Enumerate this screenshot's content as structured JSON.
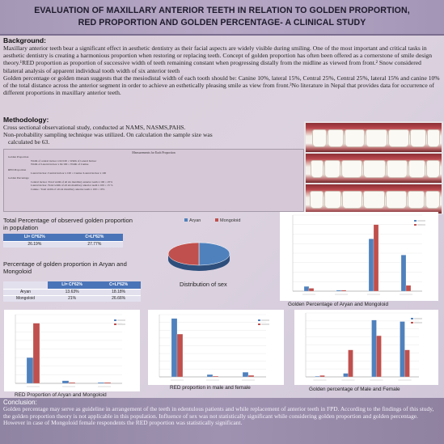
{
  "header": {
    "title_line1": "EVALUATION OF MAXILLARY ANTERIOR TEETH IN RELATION TO GOLDEN PROPORTION,",
    "title_line2": "RED PROPORTION AND GOLDEN PERCENTAGE- A CLINICAL STUDY"
  },
  "background": {
    "heading": "Background:",
    "p1": "Maxillary anterior teeth bear a significant effect in aesthetic dentistry as their facial aspects are widely visible during smiling. One of the most important and critical tasks in aesthetic dentistry is creating a harmonious proportion when restoring or replacing teeth. Concept of golden proportion has often been offered as a cornerstone of smile design theory.¹RED proportion as proportion of successive width of teeth remaining constant when progressing distally from the midline as viewed from front.² Snow considered bilateral analysis of apparent individual tooth width of six anterior teeth",
    "p2": "Golden percentage or golden mean suggests that the mesiodistal width of each tooth should be: Canine 10%, lateral 15%, Central 25%, Central 25%, lateral 15% and canine 10% of the total distance across the anterior segment in order to achieve an esthetically pleasing smile as view from front.³No literature in Nepal that provides data for occurrence of different proportions in maxillary anterior teeth."
  },
  "methodology": {
    "heading": "Methodology:",
    "line1": "Cross sectional observational study, conducted at NAMS, NASMS,PAHS.",
    "line2": "Non-probability sampling technique was utilized. On calculation the sample size was",
    "line3": "calculated be 63."
  },
  "measurements": {
    "title": "Measurements for Each Proportion",
    "gp_head": "Golden Proportion",
    "gp1": "Width of central incisor x 62/100 = Width of Lateral Incisor",
    "gp2": "Width of Lateral incisor x 62/100 = Width of Canine",
    "red_head": "RED Proportion",
    "red1": "Lateral incisor /Central incisor x 100 = Canine /Lateral incisor x 100",
    "gpc_head": "Golden Percentage",
    "gpc1": "Central incisor /Total width of all six maxillary anterior teeth x 100 = 25%",
    "gpc2": "Lateral incisor /Total width of all six maxillary anterior teeth x 100 = 15 %",
    "gpc3": "Canine / Total width of all six maxillary anterior teeth x 100 = 10%"
  },
  "total_table": {
    "heading": "Total Percentage of observed golden proportion in population",
    "col1": "LI= CI*62%",
    "col2": "C=LI*62%",
    "val1": "26.19%",
    "val2": "27.77%"
  },
  "group_table": {
    "heading": "Percentage of golden proportion in Aryan and Mongoloid",
    "col1": "LI= CI*62%",
    "col2": "C=LI*62%",
    "rows": [
      {
        "label": "Aryan",
        "v1": "13.63%",
        "v2": "18.18%"
      },
      {
        "label": "Mongoloid",
        "v1": "21%",
        "v2": "26.66%"
      }
    ]
  },
  "captions": {
    "pie": "Distribution of sex",
    "golden_pct_group": "Golden Percentage of Aryan and Mongoloid",
    "red_group": "RED Proportion of Aryan and Mongoloid",
    "red_sex": "RED proportion in male and female",
    "golden_pct_sex": "Golden percentage  of Male and Female"
  },
  "colors": {
    "blue": "#4f81bd",
    "red": "#c0504d",
    "header_bg": "#a99bbb",
    "conclusion_bg": "#978aa9"
  },
  "chart_data": [
    {
      "type": "pie",
      "series": [
        {
          "name": "Aryan",
          "value": 50
        },
        {
          "name": "Mongoloid",
          "value": 50
        }
      ],
      "legend": [
        "Aryan",
        "Mongoloid"
      ]
    },
    {
      "type": "bar",
      "categories": [
        "c1",
        "c2",
        "c3",
        "c4"
      ],
      "series": [
        {
          "name": "",
          "values": [
            5,
            1,
            55,
            38
          ]
        },
        {
          "name": "",
          "values": [
            3,
            1,
            70,
            6
          ]
        }
      ],
      "ylim": [
        0,
        80
      ]
    },
    {
      "type": "bar",
      "categories": [
        "c1",
        "c2",
        "c3"
      ],
      "series": [
        {
          "name": "",
          "values": [
            30,
            3,
            1
          ]
        },
        {
          "name": "",
          "values": [
            70,
            1,
            1
          ]
        }
      ],
      "ylim": [
        0,
        80
      ]
    },
    {
      "type": "bar",
      "categories": [
        "c1",
        "c2",
        "c3"
      ],
      "series": [
        {
          "name": "",
          "values": [
            75,
            3,
            6
          ]
        },
        {
          "name": "",
          "values": [
            55,
            1,
            2
          ]
        }
      ],
      "ylim": [
        0,
        80
      ]
    },
    {
      "type": "bar",
      "categories": [
        "c1",
        "c2",
        "c3",
        "c4"
      ],
      "series": [
        {
          "name": "",
          "values": [
            1,
            5,
            80,
            78
          ]
        },
        {
          "name": "",
          "values": [
            2,
            38,
            58,
            38
          ]
        }
      ],
      "ylim": [
        0,
        90
      ]
    }
  ],
  "conclusion": {
    "heading": "Conclusion:",
    "text": "Golden percentage may serve as guideline in arrangement of the teeth in edentulous patients and while replacement of anterior teeth in FPD. According to the findings of this study, the golden proportion theory is not applicable in this population. Influence of sex was not statistically significant while considering golden proportion and golden percentage. However in case of Mongoloid female respondents the RED proportion was statistically significant."
  }
}
